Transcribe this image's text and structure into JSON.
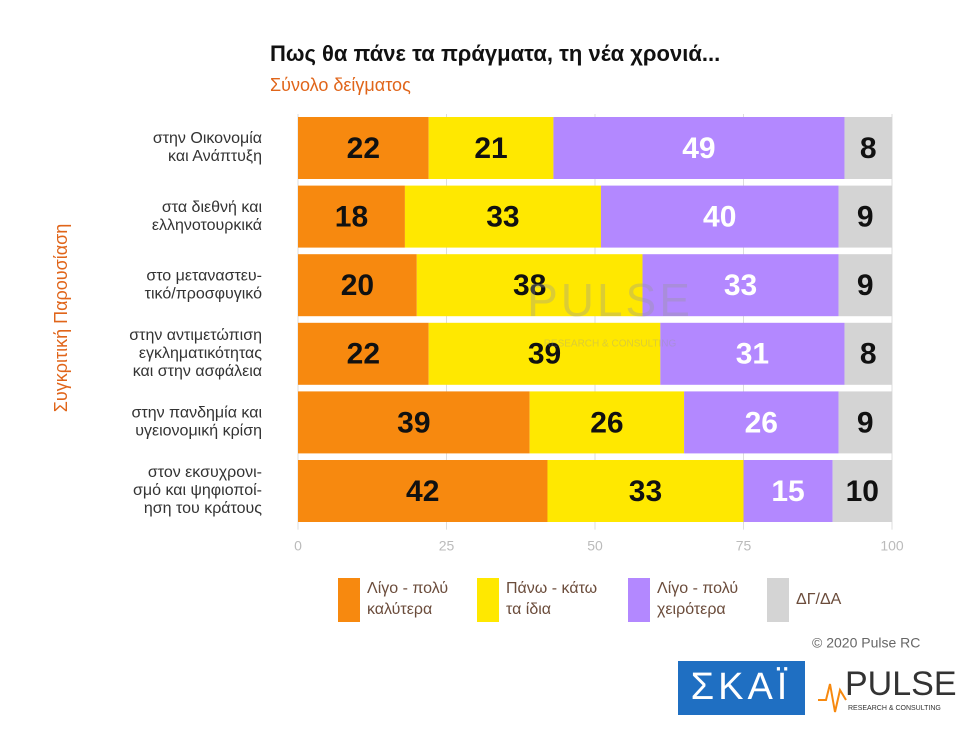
{
  "chart_data": {
    "type": "stacked-bar-horizontal",
    "title": "Πως θα πάνε τα πράγματα, τη νέα χρονιά...",
    "subtitle": "Σύνολο δείγματος",
    "y_axis_label": "Συγκριτική  Παρουσίαση",
    "categories": [
      [
        "στην Οικονομία",
        "και Ανάπτυξη"
      ],
      [
        "στα διεθνή και",
        "ελληνοτουρκικά"
      ],
      [
        "στο μεταναστευ-",
        "τικό/προσφυγικό"
      ],
      [
        "στην αντιμετώπιση",
        "εγκληματικότητας",
        "και στην ασφάλεια"
      ],
      [
        "στην πανδημία και",
        "υγειονομική κρίση"
      ],
      [
        "στον εκσυχρονι-",
        "σμό και ψηφιοποί-",
        "ηση του κράτους"
      ]
    ],
    "series": [
      {
        "name": "Λίγο - πολύ καλύτερα",
        "color": "#f7890f",
        "label_color": "#111111",
        "values": [
          22,
          18,
          20,
          22,
          39,
          42
        ]
      },
      {
        "name": "Πάνω - κάτω τα ίδια",
        "color": "#ffe800",
        "label_color": "#111111",
        "values": [
          21,
          33,
          38,
          39,
          26,
          33
        ]
      },
      {
        "name": "Λίγο - πολύ χειρότερα",
        "color": "#b388ff",
        "label_color": "#ffffff",
        "values": [
          49,
          40,
          33,
          31,
          26,
          15
        ]
      },
      {
        "name": "ΔΓ/ΔΑ",
        "color": "#d4d4d4",
        "label_color": "#111111",
        "values": [
          8,
          9,
          9,
          8,
          9,
          10
        ]
      }
    ],
    "xlim": [
      0,
      100
    ],
    "xticks": [
      0,
      25,
      50,
      75,
      100
    ],
    "grid": true
  },
  "footer": {
    "copyright": "© 2020 Pulse RC",
    "logo_skai": "ΣΚΑΪ",
    "logo_pulse": "PULSE",
    "logo_pulse_sub": "RESEARCH & CONSULTING"
  },
  "watermark": {
    "text": "PULSE",
    "sub": "RESEARCH & CONSULTING"
  }
}
